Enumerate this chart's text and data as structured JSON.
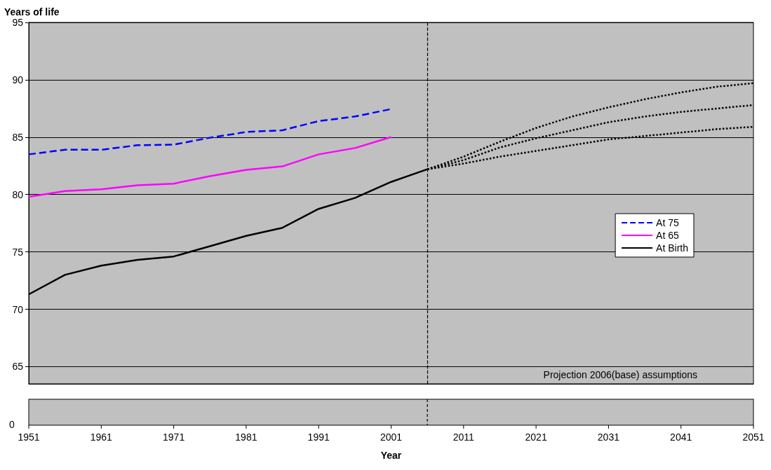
{
  "chart_data": {
    "type": "line",
    "ylabel": "Years of life",
    "xlabel": "Year",
    "xlim": [
      1951,
      2051
    ],
    "xticks": [
      1951,
      1961,
      1971,
      1981,
      1991,
      2001,
      2011,
      2021,
      2031,
      2041,
      2051
    ],
    "ylim": [
      63.5,
      95
    ],
    "yticks": [
      65,
      70,
      75,
      80,
      85,
      90,
      95
    ],
    "grid": "y",
    "legend": "right",
    "marker": "none",
    "series": [
      {
        "name": "At 75",
        "color": "#0000ff",
        "line_style": "dashed",
        "x": [
          1951,
          1956,
          1961,
          1966,
          1971,
          1976,
          1981,
          1986,
          1991,
          1996,
          2001
        ],
        "values": [
          83.5,
          83.9,
          83.9,
          84.3,
          84.35,
          84.95,
          85.45,
          85.6,
          86.4,
          86.8,
          87.45
        ]
      },
      {
        "name": "At 65",
        "color": "#ff00ff",
        "line_style": "solid",
        "x": [
          1951,
          1956,
          1961,
          1966,
          1971,
          1976,
          1981,
          1986,
          1991,
          1996,
          2001
        ],
        "values": [
          79.8,
          80.3,
          80.45,
          80.8,
          80.95,
          81.6,
          82.15,
          82.45,
          83.5,
          84.05,
          85.0
        ]
      },
      {
        "name": "At Birth",
        "color": "#000000",
        "line_style": "solid",
        "x": [
          1951,
          1956,
          1961,
          1966,
          1971,
          1976,
          1981,
          1986,
          1991,
          1996,
          2001,
          2006
        ],
        "values": [
          71.3,
          73.0,
          73.8,
          74.3,
          74.6,
          75.5,
          76.4,
          77.1,
          78.75,
          79.7,
          81.1,
          82.2
        ]
      },
      {
        "color": "#000000",
        "line_style": "dotted",
        "x": [
          2006,
          2011,
          2016,
          2021,
          2026,
          2031,
          2036,
          2041,
          2046,
          2051
        ],
        "values": [
          82.2,
          83.3,
          84.6,
          85.8,
          86.8,
          87.6,
          88.3,
          88.9,
          89.4,
          89.7
        ]
      },
      {
        "color": "#000000",
        "line_style": "dotted",
        "x": [
          2006,
          2011,
          2016,
          2021,
          2026,
          2031,
          2036,
          2041,
          2046,
          2051
        ],
        "values": [
          82.2,
          83.0,
          84.1,
          84.9,
          85.6,
          86.3,
          86.8,
          87.2,
          87.5,
          87.8
        ]
      },
      {
        "color": "#000000",
        "line_style": "dotted",
        "x": [
          2006,
          2011,
          2016,
          2021,
          2026,
          2031,
          2036,
          2041,
          2046,
          2051
        ],
        "values": [
          82.2,
          82.7,
          83.3,
          83.8,
          84.3,
          84.8,
          85.1,
          85.4,
          85.7,
          85.9
        ]
      }
    ],
    "ref_lines": [
      {
        "axis": "x",
        "value": 2006,
        "color": "#000000",
        "line_style": "dashed"
      }
    ],
    "annotations": [
      "Projection 2006(base) assumptions",
      "0"
    ]
  }
}
